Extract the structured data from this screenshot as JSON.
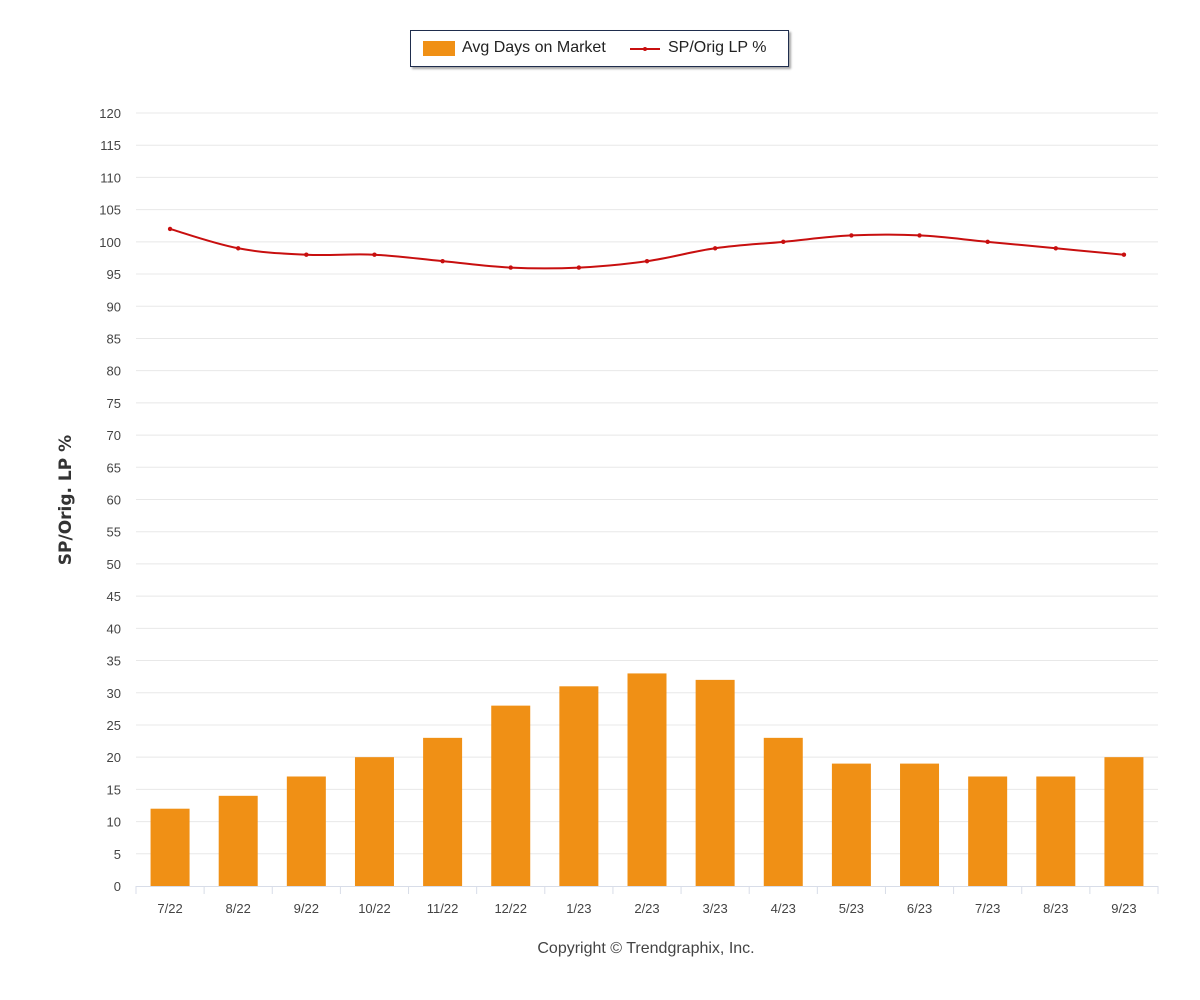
{
  "legend": {
    "bar_label": "Avg Days on Market",
    "line_label": "SP/Orig LP %"
  },
  "y_axis_title": "SP/Orig. LP %",
  "copyright": "Copyright © Trendgraphix, Inc.",
  "colors": {
    "bar": "#f09015",
    "line": "#c80f0f",
    "grid": "#e8e8e8"
  },
  "chart_data": {
    "type": "bar",
    "categories": [
      "7/22",
      "8/22",
      "9/22",
      "10/22",
      "11/22",
      "12/22",
      "1/23",
      "2/23",
      "3/23",
      "4/23",
      "5/23",
      "6/23",
      "7/23",
      "8/23",
      "9/23"
    ],
    "series": [
      {
        "name": "Avg Days on Market",
        "type": "bar",
        "values": [
          12,
          14,
          17,
          20,
          23,
          28,
          31,
          33,
          32,
          23,
          19,
          19,
          17,
          17,
          20
        ]
      },
      {
        "name": "SP/Orig LP %",
        "type": "line",
        "values": [
          102,
          99,
          98,
          98,
          97,
          96,
          96,
          97,
          99,
          100,
          101,
          101,
          100,
          99,
          98
        ]
      }
    ],
    "ylabel": "SP/Orig. LP %",
    "ylim": [
      0,
      120
    ],
    "yticks": [
      0,
      5,
      10,
      15,
      20,
      25,
      30,
      35,
      40,
      45,
      50,
      55,
      60,
      65,
      70,
      75,
      80,
      85,
      90,
      95,
      100,
      105,
      110,
      115,
      120
    ],
    "grid": true,
    "legend_position": "top-center"
  }
}
